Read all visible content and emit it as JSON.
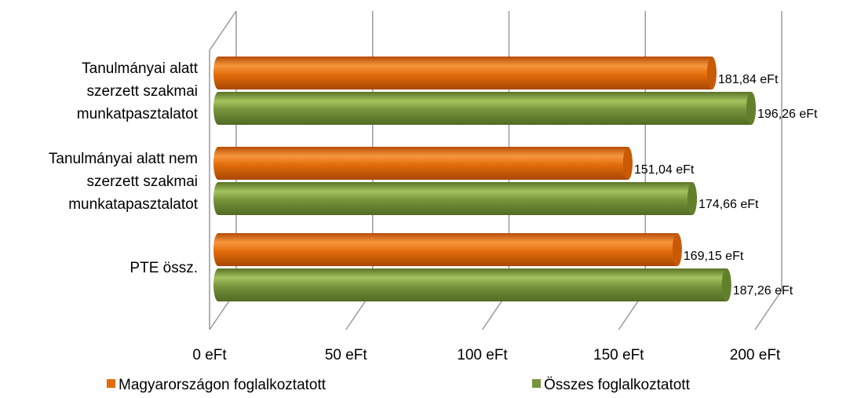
{
  "chart_data": {
    "type": "bar",
    "orientation": "horizontal",
    "style": "3d-cylinder",
    "categories": [
      [
        "Tanulmányai alatt",
        "szerzett szakmai",
        "munkatpasztalatot"
      ],
      [
        "Tanulmányai alatt nem",
        "szerzett szakmai",
        "munkatapasztalatot"
      ],
      [
        "PTE össz."
      ]
    ],
    "series": [
      {
        "name": "Magyarországon foglalkoztatott",
        "color": "#e36c0a",
        "values": [
          181.84,
          151.04,
          169.15
        ],
        "labels": [
          "181,84 eFt",
          "151,04 eFt",
          "169,15 eFt"
        ]
      },
      {
        "name": "Összes foglalkoztatott",
        "color": "#77933c",
        "values": [
          196.26,
          174.66,
          187.26
        ],
        "labels": [
          "196,26 eFt",
          "174,66 eFt",
          "187,26 eFt"
        ]
      }
    ],
    "xlim": [
      0,
      200
    ],
    "xticks": [
      0,
      50,
      100,
      150,
      200
    ],
    "xtick_labels": [
      "0 eFt",
      "50 eFt",
      "100 eFt",
      "150 eFt",
      "200 eFt"
    ],
    "grid": true,
    "legend_position": "bottom"
  }
}
